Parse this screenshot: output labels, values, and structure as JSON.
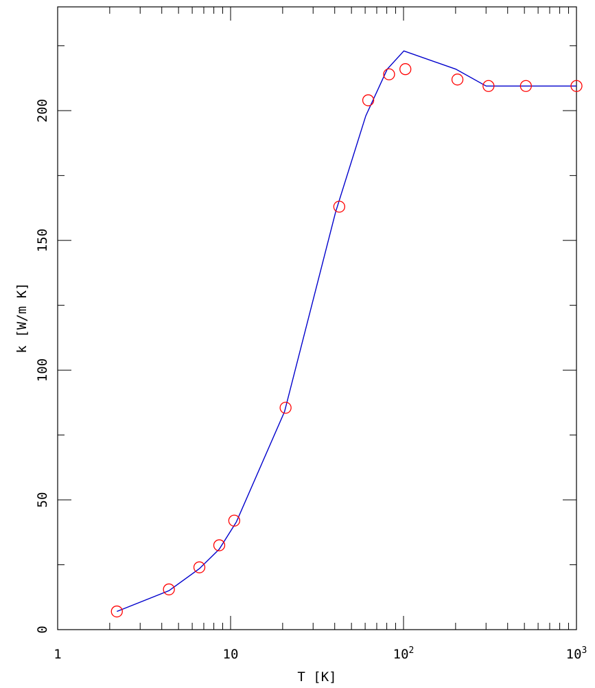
{
  "chart_data": {
    "type": "line",
    "title": "",
    "xlabel": "T [K]",
    "ylabel": "k [W/m K]",
    "xscale": "log",
    "xlim": [
      1,
      1000
    ],
    "ylim": [
      0,
      240
    ],
    "x_tick_labels": [
      {
        "value": 1,
        "base": "1",
        "exp": ""
      },
      {
        "value": 10,
        "base": "10",
        "exp": ""
      },
      {
        "value": 100,
        "base": "10",
        "exp": "2"
      },
      {
        "value": 1000,
        "base": "10",
        "exp": "3"
      }
    ],
    "y_tick_labels": [
      {
        "value": 0,
        "text": "0"
      },
      {
        "value": 50,
        "text": "50"
      },
      {
        "value": 100,
        "text": "100"
      },
      {
        "value": 150,
        "text": "150"
      },
      {
        "value": 200,
        "text": "200"
      }
    ],
    "y_minor_step": 25,
    "grid": false,
    "series": [
      {
        "style": "line",
        "color": "#0000cc",
        "x": [
          2.2,
          4.4,
          6.6,
          8.6,
          10.8,
          20.5,
          40.5,
          60.5,
          80.5,
          100.5,
          200.5,
          300.5,
          1000
        ],
        "y": [
          7,
          15,
          23.5,
          31,
          41.5,
          84,
          161,
          198,
          216,
          223,
          216,
          209.5,
          209.5
        ]
      },
      {
        "style": "markers",
        "marker": "open-circle",
        "color": "#ff0000",
        "x": [
          2.2,
          4.4,
          6.6,
          8.6,
          10.5,
          20.8,
          42.5,
          62.5,
          82.5,
          102.5,
          205,
          310,
          510,
          1000
        ],
        "y": [
          7,
          15.5,
          24,
          32.5,
          42,
          85.5,
          163,
          204,
          214,
          216,
          212,
          209.5,
          209.5,
          209.5
        ]
      }
    ]
  }
}
